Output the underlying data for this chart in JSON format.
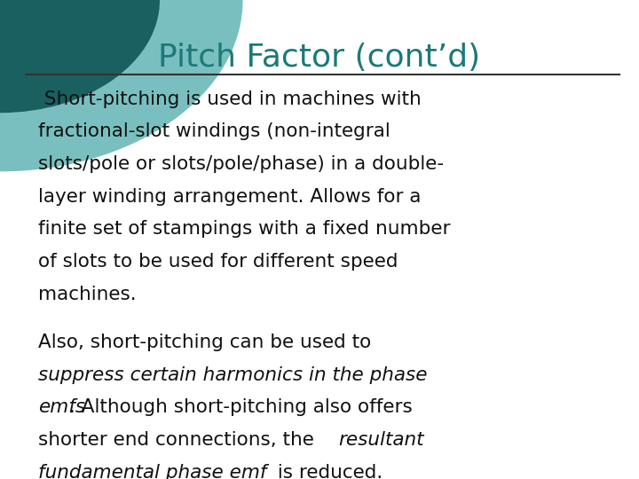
{
  "title": "Pitch Factor (cont’d)",
  "title_color": "#1a7a78",
  "title_fontsize": 26,
  "bg_color": "#ffffff",
  "line_color": "#333333",
  "text_color": "#111111",
  "para1_lines": [
    " Short-pitching is used in machines with",
    "fractional-slot windings (non-integral",
    "slots/pole or slots/pole/phase) in a double-",
    "layer winding arrangement. Allows for a",
    "finite set of stampings with a fixed number",
    "of slots to be used for different speed",
    "machines."
  ],
  "para2_line1_normal": "Also, short-pitching can be used to",
  "para2_line2_italic": "suppress certain harmonics in the phase",
  "para2_line3_italic": "emfs",
  "para2_line3_normal": ". Although short-pitching also offers",
  "para2_line4_normal": "shorter end connections, the ",
  "para2_line4_italic": "resultant",
  "para2_line5_italic": "fundamental phase emf",
  "para2_line5_normal": " is reduced.",
  "body_fontsize": 15.5,
  "circle_color_dark": "#1a6060",
  "circle_color_light": "#7abfbf"
}
